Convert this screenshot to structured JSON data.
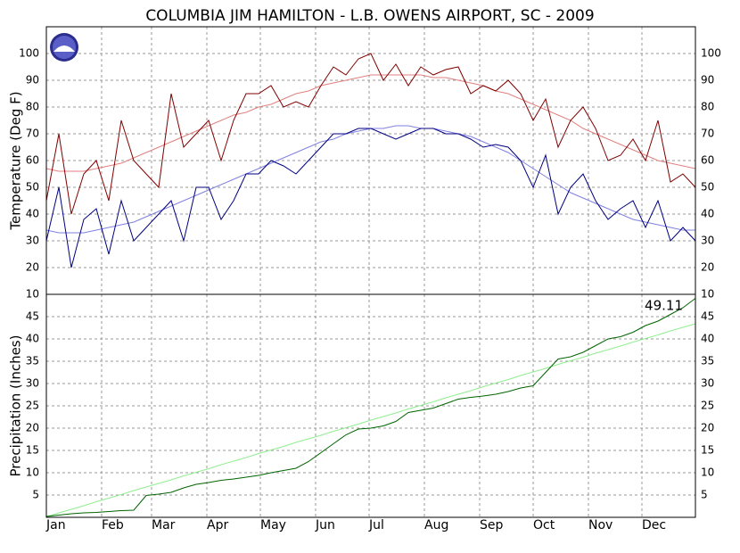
{
  "chart_data": [
    {
      "type": "line",
      "title": "COLUMBIA JIM HAMILTON - L.B. OWENS AIRPORT, SC - 2009",
      "y_label": "Temperature (Deg F)",
      "x": [
        1,
        8,
        15,
        22,
        29,
        36,
        43,
        50,
        57,
        64,
        71,
        78,
        85,
        92,
        99,
        106,
        113,
        120,
        127,
        134,
        141,
        148,
        155,
        162,
        169,
        176,
        183,
        190,
        197,
        204,
        211,
        218,
        225,
        232,
        239,
        246,
        253,
        260,
        267,
        274,
        281,
        288,
        295,
        302,
        309,
        316,
        323,
        330,
        337,
        344,
        351,
        358,
        365
      ],
      "xlim": [
        1,
        365
      ],
      "xticks": [
        1,
        32,
        60,
        91,
        121,
        152,
        182,
        213,
        244,
        274,
        305,
        335
      ],
      "ylim": [
        10,
        110
      ],
      "yticks": [
        10,
        20,
        30,
        40,
        50,
        60,
        70,
        80,
        90,
        100
      ],
      "grid": true,
      "series": [
        {
          "color": "#e08080",
          "values": [
            57,
            56,
            56,
            56,
            57,
            58,
            59,
            61,
            63,
            65,
            67,
            69,
            71,
            73,
            75,
            77,
            78,
            80,
            81,
            83,
            85,
            86,
            88,
            89,
            90,
            91,
            92,
            92,
            92,
            92,
            92,
            91,
            91,
            90,
            89,
            88,
            86,
            85,
            83,
            81,
            79,
            77,
            75,
            72,
            70,
            68,
            66,
            64,
            62,
            60,
            59,
            58,
            57
          ]
        },
        {
          "color": "#8080e0",
          "values": [
            34,
            33,
            33,
            33,
            34,
            35,
            36,
            37,
            39,
            41,
            43,
            45,
            47,
            49,
            51,
            53,
            55,
            57,
            59,
            61,
            63,
            65,
            67,
            68,
            70,
            71,
            72,
            72,
            73,
            73,
            72,
            72,
            71,
            70,
            69,
            67,
            65,
            63,
            60,
            57,
            54,
            51,
            48,
            46,
            44,
            42,
            40,
            38,
            37,
            36,
            35,
            34,
            34
          ]
        },
        {
          "color": "#800000",
          "values": [
            45,
            70,
            40,
            55,
            60,
            45,
            75,
            60,
            55,
            50,
            85,
            65,
            70,
            75,
            60,
            75,
            85,
            85,
            88,
            80,
            82,
            80,
            88,
            95,
            92,
            98,
            100,
            90,
            96,
            88,
            95,
            92,
            94,
            95,
            85,
            88,
            86,
            90,
            85,
            75,
            83,
            65,
            75,
            80,
            72,
            60,
            62,
            68,
            60,
            75,
            52,
            55,
            50
          ]
        },
        {
          "color": "#000080",
          "values": [
            30,
            50,
            20,
            38,
            42,
            25,
            45,
            30,
            35,
            40,
            45,
            30,
            50,
            50,
            38,
            45,
            55,
            55,
            60,
            58,
            55,
            60,
            65,
            70,
            70,
            72,
            72,
            70,
            68,
            70,
            72,
            72,
            70,
            70,
            68,
            65,
            66,
            65,
            60,
            50,
            62,
            40,
            50,
            55,
            45,
            38,
            42,
            45,
            35,
            45,
            30,
            35,
            30
          ]
        }
      ]
    },
    {
      "type": "line",
      "y_label": "Precipitation (Inches)",
      "annotation": "49.11",
      "x": [
        1,
        8,
        15,
        22,
        29,
        36,
        43,
        50,
        57,
        64,
        71,
        78,
        85,
        92,
        99,
        106,
        113,
        120,
        127,
        134,
        141,
        148,
        155,
        162,
        169,
        176,
        183,
        190,
        197,
        204,
        211,
        218,
        225,
        232,
        239,
        246,
        253,
        260,
        267,
        274,
        281,
        288,
        295,
        302,
        309,
        316,
        323,
        330,
        337,
        344,
        351,
        358,
        365
      ],
      "xlim": [
        1,
        365
      ],
      "xticks": [
        {
          "value": 1,
          "label": "Jan"
        },
        {
          "value": 32,
          "label": "Feb"
        },
        {
          "value": 60,
          "label": "Mar"
        },
        {
          "value": 91,
          "label": "Apr"
        },
        {
          "value": 121,
          "label": "May"
        },
        {
          "value": 152,
          "label": "Jun"
        },
        {
          "value": 182,
          "label": "Jul"
        },
        {
          "value": 213,
          "label": "Aug"
        },
        {
          "value": 244,
          "label": "Sep"
        },
        {
          "value": 274,
          "label": "Oct"
        },
        {
          "value": 305,
          "label": "Nov"
        },
        {
          "value": 335,
          "label": "Dec"
        }
      ],
      "ylim": [
        0,
        50
      ],
      "yticks": [
        5,
        10,
        15,
        20,
        25,
        30,
        35,
        40,
        45
      ],
      "grid": true,
      "series": [
        {
          "color": "#90ee90",
          "values": [
            0.1,
            1.0,
            1.8,
            2.6,
            3.5,
            4.3,
            5.1,
            6.0,
            6.8,
            7.6,
            8.4,
            9.3,
            10.1,
            10.9,
            11.8,
            12.6,
            13.4,
            14.3,
            15.1,
            15.9,
            16.8,
            17.6,
            18.4,
            19.3,
            20.1,
            20.9,
            21.8,
            22.6,
            23.4,
            24.3,
            25.1,
            25.9,
            26.8,
            27.6,
            28.4,
            29.3,
            30.1,
            30.9,
            31.8,
            32.6,
            33.4,
            34.3,
            35.1,
            35.9,
            36.8,
            37.6,
            38.4,
            39.3,
            40.1,
            40.9,
            41.8,
            42.6,
            43.4
          ]
        },
        {
          "color": "#006400",
          "values": [
            0.2,
            0.5,
            0.8,
            1.0,
            1.1,
            1.3,
            1.5,
            1.6,
            4.9,
            5.2,
            5.6,
            6.6,
            7.4,
            7.8,
            8.3,
            8.6,
            9.0,
            9.4,
            10.0,
            10.5,
            11.0,
            12.5,
            14.5,
            16.5,
            18.5,
            19.8,
            20.0,
            20.5,
            21.5,
            23.5,
            24.0,
            24.5,
            25.5,
            26.5,
            26.9,
            27.2,
            27.6,
            28.2,
            29.0,
            29.5,
            32.5,
            35.5,
            36.0,
            37.0,
            38.5,
            40.0,
            40.5,
            41.5,
            43.0,
            44.0,
            45.5,
            47.0,
            49.11
          ]
        }
      ]
    }
  ]
}
